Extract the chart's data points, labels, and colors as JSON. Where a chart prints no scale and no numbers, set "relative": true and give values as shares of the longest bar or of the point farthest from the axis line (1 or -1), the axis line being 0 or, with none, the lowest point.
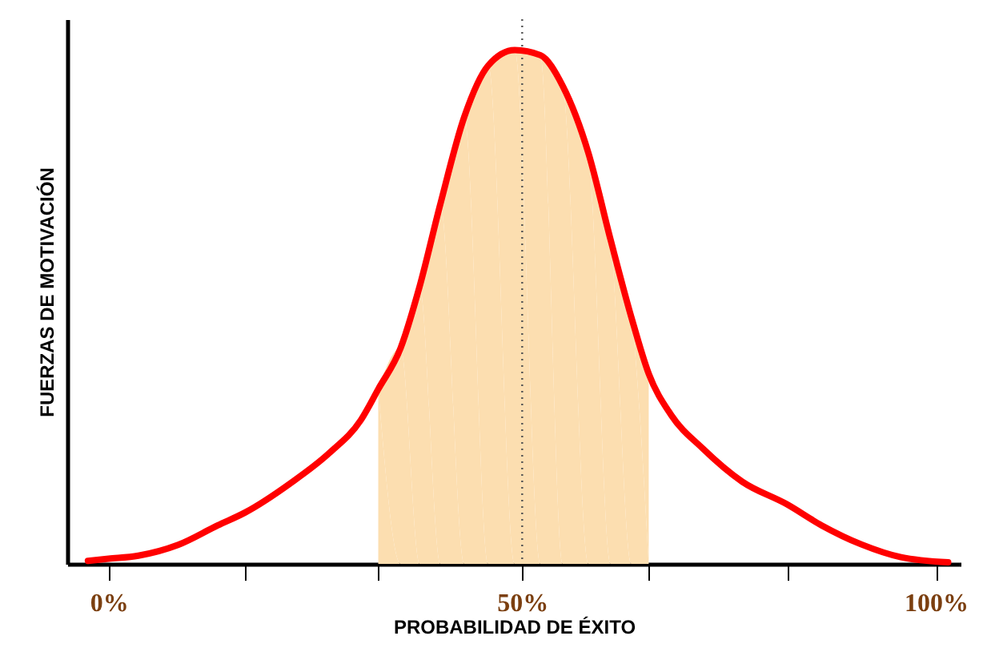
{
  "chart_data": {
    "type": "line",
    "xlabel": "PROBABILIDAD DE ÉXITO",
    "ylabel": "FUERZAS DE MOTIVACIÓN",
    "relative": true,
    "x": [
      -2.5,
      0,
      3.6,
      8.4,
      13.2,
      16.5,
      21.9,
      26.7,
      30.5,
      32.6,
      35.3,
      37.6,
      40.1,
      43.0,
      45.9,
      49.1,
      52.2,
      54.9,
      58.0,
      60.7,
      63.2,
      65.3,
      68.0,
      71.8,
      76.6,
      82,
      86.2,
      91.0,
      95.8,
      101.5
    ],
    "series": [
      {
        "type": "area",
        "color": "#fcdeb0",
        "x": [
          32.6,
          35.3,
          37.6,
          40.1,
          43.0,
          45.9,
          49.1,
          52.2,
          54.9,
          58.0,
          60.7,
          63.2,
          65.3
        ],
        "values": [
          0.34,
          0.42,
          0.54,
          0.7,
          0.87,
          0.97,
          1.0,
          0.99,
          0.93,
          0.8,
          0.63,
          0.48,
          0.37
        ]
      },
      {
        "color": "#ff0000",
        "values": [
          0.006,
          0.01,
          0.016,
          0.037,
          0.075,
          0.1,
          0.156,
          0.216,
          0.28,
          0.34,
          0.42,
          0.54,
          0.7,
          0.87,
          0.97,
          1.0,
          0.99,
          0.93,
          0.8,
          0.63,
          0.48,
          0.37,
          0.29,
          0.225,
          0.16,
          0.116,
          0.075,
          0.038,
          0.013,
          0.003
        ]
      }
    ],
    "xlim": [
      -5,
      103
    ],
    "xticks": [
      {
        "value": 0,
        "label": "0%"
      },
      {
        "value": 16.5,
        "label": null
      },
      {
        "value": 32.6,
        "label": null
      },
      {
        "value": 50,
        "label": "50%"
      },
      {
        "value": 65.3,
        "label": null
      },
      {
        "value": 82,
        "label": null
      },
      {
        "value": 100,
        "label": "100%"
      }
    ],
    "ref_lines": [
      {
        "axis": "x",
        "value": 50,
        "color": "#555555",
        "line_style": "dotted"
      }
    ],
    "tick_labels": "x",
    "grid": false,
    "marker": "none",
    "line_style": "solid"
  }
}
